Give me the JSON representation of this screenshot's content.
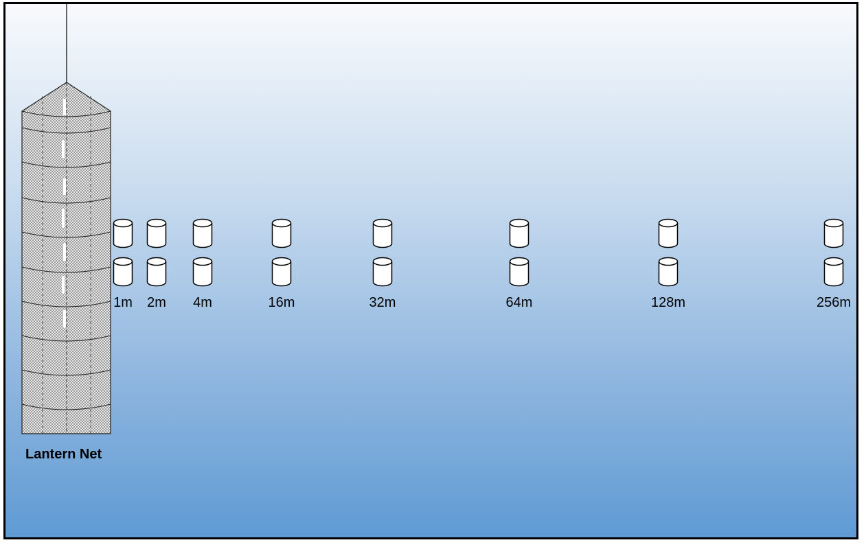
{
  "diagram": {
    "net_label": "Lantern Net",
    "colors": {
      "water_top": "#f8fafd",
      "water_bottom": "#5f9bd4",
      "border": "#000000",
      "cylinder_fill": "#ffffff",
      "cylinder_stroke": "#000000"
    },
    "stations": [
      {
        "distance_label": "1m"
      },
      {
        "distance_label": "2m"
      },
      {
        "distance_label": "4m"
      },
      {
        "distance_label": "16m"
      },
      {
        "distance_label": "32m"
      },
      {
        "distance_label": "64m"
      },
      {
        "distance_label": "128m"
      },
      {
        "distance_label": "256m"
      }
    ]
  }
}
